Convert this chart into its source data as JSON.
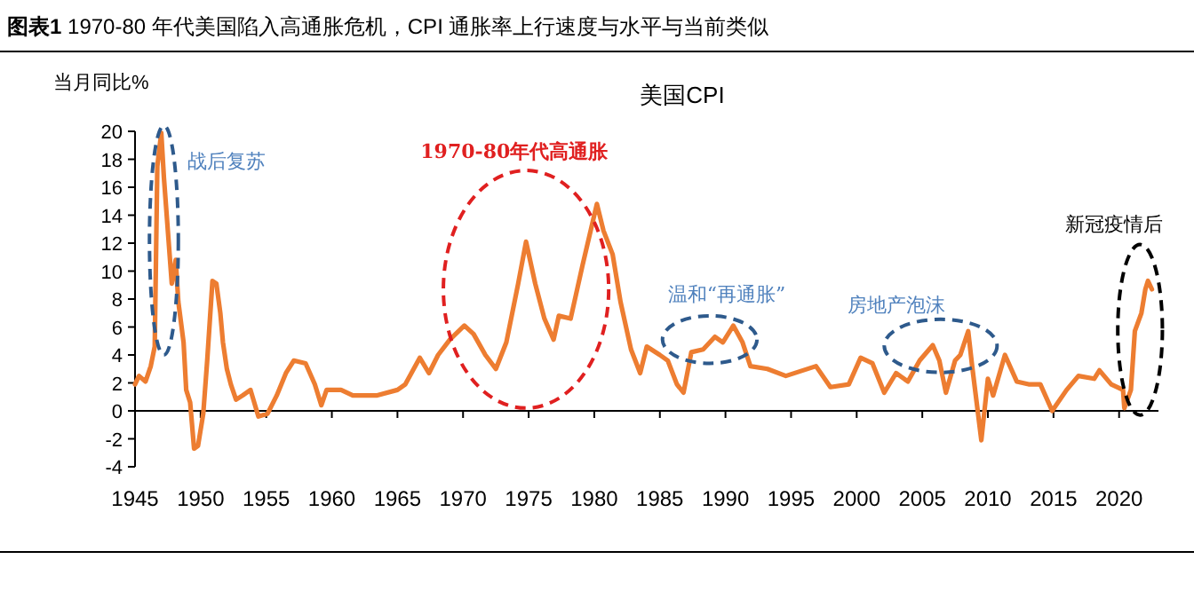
{
  "chart_data": {
    "type": "line",
    "title": "**图表1**     1970-80 年代美国陷入高通胀危机，CPI 通胀率上行速度与水平与当前类似",
    "subtitle": "美国CPI",
    "ylabel": "当月同比%",
    "xlim": [
      1945,
      2023
    ],
    "xticks": [
      1945,
      1950,
      1955,
      1960,
      1965,
      1970,
      1975,
      1980,
      1985,
      1990,
      1995,
      2000,
      2005,
      2010,
      2015,
      2020
    ],
    "ylim": [
      -4,
      20
    ],
    "yticks": [
      -4,
      -2,
      0,
      2,
      4,
      6,
      8,
      10,
      12,
      14,
      16,
      18,
      20
    ],
    "marker": "none",
    "line_style": "solid",
    "series": [
      {
        "color": "#ed7d31",
        "x": [
          1945,
          1945.3,
          1945.8,
          1946.2,
          1946.5,
          1946.7,
          1947.0,
          1947.2,
          1947.5,
          1947.8,
          1948.1,
          1948.3,
          1948.7,
          1948.9,
          1949.2,
          1949.5,
          1949.8,
          1950.2,
          1950.5,
          1950.9,
          1951.2,
          1951.5,
          1951.7,
          1952.0,
          1952.3,
          1952.7,
          1953.2,
          1953.8,
          1954.4,
          1955.1,
          1955.8,
          1956.5,
          1957.1,
          1958.0,
          1958.7,
          1959.2,
          1959.6,
          1960.7,
          1961.6,
          1963.4,
          1965,
          1965.6,
          1966.7,
          1967.4,
          1968.1,
          1969,
          1970.1,
          1970.8,
          1971.7,
          1972.5,
          1973.3,
          1974.2,
          1974.8,
          1975.5,
          1976.2,
          1976.9,
          1977.3,
          1978.2,
          1979.1,
          1980.2,
          1980.7,
          1981.4,
          1982,
          1982.8,
          1983.5,
          1984,
          1985,
          1985.6,
          1986.3,
          1986.8,
          1987.4,
          1988.3,
          1989.2,
          1989.8,
          1990.6,
          1991.3,
          1991.9,
          1993.2,
          1994.6,
          1996.9,
          1998.0,
          1999.4,
          2000.3,
          2001.2,
          2002.1,
          2003,
          2003.9,
          2004.8,
          2005.8,
          2006.3,
          2006.8,
          2007.5,
          2007.9,
          2008.5,
          2008.8,
          2009.5,
          2010,
          2010.4,
          2011.3,
          2012.2,
          2013.1,
          2014,
          2014.9,
          2016,
          2016.9,
          2018.1,
          2018.5,
          2019.4,
          2020.3,
          2020.4,
          2020.9,
          2021.2,
          2021.7,
          2022.0,
          2022.2,
          2022.5
        ],
        "values": [
          1.9,
          2.5,
          2.1,
          3.2,
          4.6,
          17.5,
          19.9,
          16.7,
          12.9,
          9.1,
          10.8,
          7.8,
          4.9,
          1.5,
          0.6,
          -2.7,
          -2.5,
          -0.2,
          3.6,
          9.3,
          9.1,
          7.0,
          4.9,
          3.0,
          1.9,
          0.8,
          1.1,
          1.5,
          -0.4,
          -0.2,
          1.1,
          2.7,
          3.6,
          3.4,
          1.9,
          0.4,
          1.5,
          1.5,
          1.1,
          1.1,
          1.5,
          1.9,
          3.8,
          2.7,
          4.0,
          5.1,
          6.1,
          5.5,
          4.0,
          3.0,
          4.9,
          9.1,
          12.1,
          9.1,
          6.6,
          5.1,
          6.8,
          6.6,
          10.4,
          14.8,
          12.9,
          11.2,
          7.8,
          4.4,
          2.7,
          4.6,
          4.0,
          3.6,
          1.9,
          1.3,
          4.2,
          4.4,
          5.3,
          4.9,
          6.1,
          4.9,
          3.2,
          3.0,
          2.5,
          3.2,
          1.7,
          1.9,
          3.8,
          3.4,
          1.3,
          2.7,
          2.1,
          3.6,
          4.7,
          3.6,
          1.3,
          3.6,
          4.0,
          5.7,
          3.2,
          -2.1,
          2.3,
          1.1,
          4.0,
          2.1,
          1.9,
          1.9,
          0,
          1.5,
          2.5,
          2.3,
          2.9,
          1.9,
          1.5,
          0.2,
          1.5,
          5.7,
          7.0,
          8.7,
          9.3,
          8.7
        ]
      }
    ],
    "annotations": [
      "战后复苏",
      "1970-80年代高通胀",
      "温和“再通胀”",
      "房地产泡沫",
      "新冠疫情后"
    ]
  }
}
